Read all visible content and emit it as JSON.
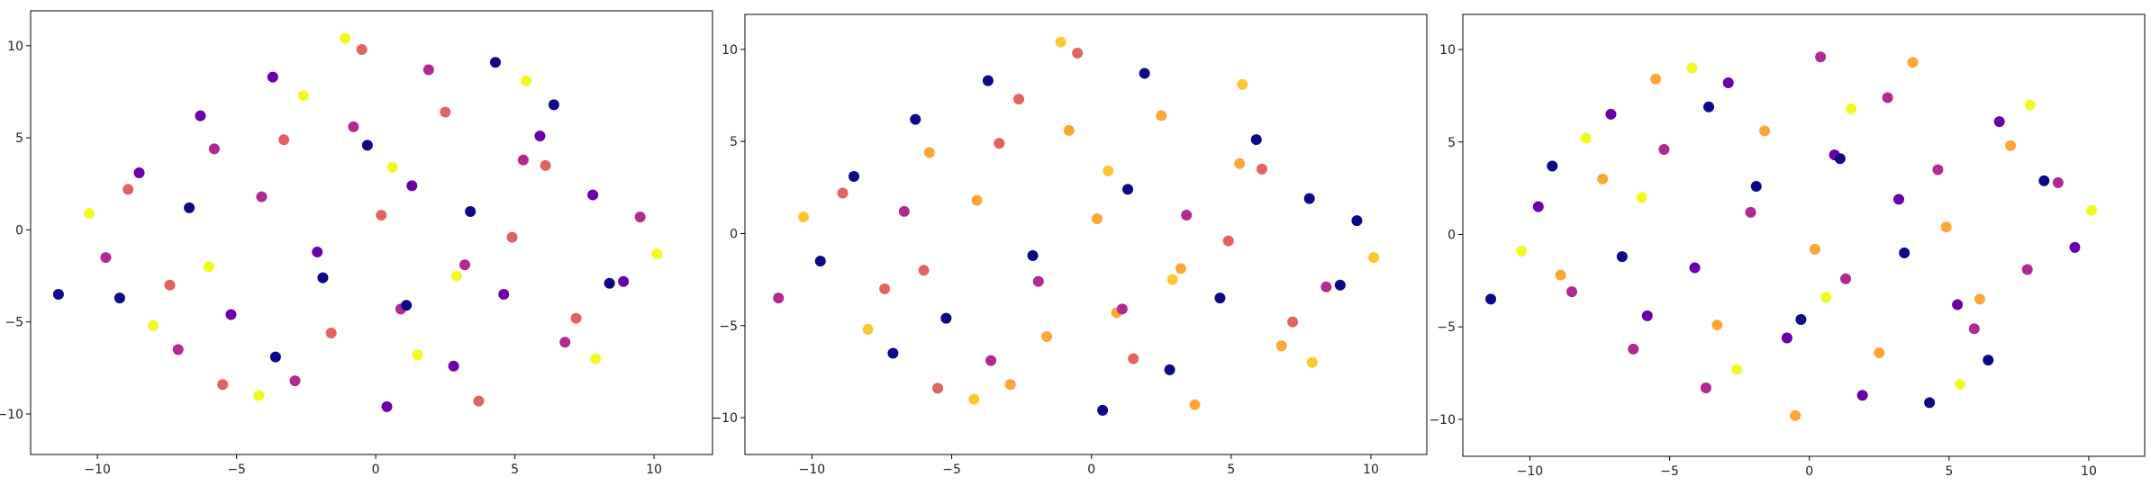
{
  "chart_data": [
    {
      "type": "scatter",
      "xlim": [
        -12.4,
        12.1
      ],
      "ylim": [
        -12.2,
        11.9
      ],
      "xticks": [
        {
          "value": -10,
          "label": "−10"
        },
        {
          "value": -5,
          "label": "−5"
        },
        0,
        5,
        10
      ],
      "yticks": [
        {
          "value": -10,
          "label": "−10"
        },
        {
          "value": -5,
          "label": "−5"
        },
        0,
        5,
        10
      ],
      "series": [
        {
          "color": "#6a00a8",
          "x": [
            -8.5,
            -5.2,
            -2.1,
            1.3,
            4.6,
            7.8,
            -6.3,
            2.8,
            5.9,
            -3.7,
            0.4,
            8.9
          ],
          "y": [
            3.1,
            -4.6,
            -1.2,
            2.4,
            -3.5,
            1.9,
            6.2,
            -7.4,
            5.1,
            8.3,
            -9.6,
            -2.8
          ]
        },
        {
          "color": "#b12a90",
          "x": [
            -9.7,
            -4.1,
            -0.8,
            3.2,
            6.8,
            9.5,
            -7.1,
            1.9,
            -2.9,
            5.3,
            -5.8,
            0.9
          ],
          "y": [
            -1.5,
            1.8,
            5.6,
            -1.9,
            -6.1,
            0.7,
            -6.5,
            8.7,
            -8.2,
            3.8,
            4.4,
            -4.3
          ]
        },
        {
          "color": "#e16462",
          "x": [
            -7.4,
            -3.3,
            0.2,
            2.5,
            4.9,
            7.2,
            -1.6,
            -5.5,
            3.7,
            -8.9,
            6.1,
            -0.5
          ],
          "y": [
            -3.0,
            4.9,
            0.8,
            6.4,
            -0.4,
            -4.8,
            -5.6,
            -8.4,
            -9.3,
            2.2,
            3.5,
            9.8
          ]
        },
        {
          "color": "#f0f921",
          "x": [
            -10.3,
            -6.0,
            -2.6,
            1.5,
            5.4,
            10.1,
            -4.2,
            0.6,
            7.9,
            -8.0,
            2.9,
            -1.1
          ],
          "y": [
            0.9,
            -2.0,
            7.3,
            -6.8,
            8.1,
            -1.3,
            -9.0,
            3.4,
            -7.0,
            -5.2,
            -2.5,
            10.4
          ]
        },
        {
          "color": "#0d0887",
          "x": [
            -6.7,
            -1.9,
            3.4,
            8.4,
            -3.6,
            1.1,
            -9.2,
            6.4,
            -0.3,
            4.3,
            -11.4
          ],
          "y": [
            1.2,
            -2.6,
            1.0,
            -2.9,
            -6.9,
            -4.1,
            -3.7,
            6.8,
            4.6,
            9.1,
            -3.5
          ]
        }
      ]
    },
    {
      "type": "scatter",
      "xlim": [
        -12.4,
        12.0
      ],
      "ylim": [
        -12.0,
        11.9
      ],
      "xticks": [
        {
          "value": -10,
          "label": "−10"
        },
        {
          "value": -5,
          "label": "−5"
        },
        0,
        5,
        10
      ],
      "yticks": [
        {
          "value": -10,
          "label": "−10"
        },
        {
          "value": -5,
          "label": "−5"
        },
        0,
        5,
        10
      ],
      "series": [
        {
          "color": "#0d0887",
          "x": [
            -8.5,
            -5.2,
            -2.1,
            1.3,
            4.6,
            7.8,
            -6.3,
            2.8,
            5.9,
            -3.7,
            0.4,
            8.9,
            -9.7,
            9.5,
            -7.1,
            1.9
          ],
          "y": [
            3.1,
            -4.6,
            -1.2,
            2.4,
            -3.5,
            1.9,
            6.2,
            -7.4,
            5.1,
            8.3,
            -9.6,
            -2.8,
            -1.5,
            0.7,
            -6.5,
            8.7
          ]
        },
        {
          "color": "#fca636",
          "x": [
            -4.1,
            -0.8,
            3.2,
            6.8,
            -2.9,
            5.3,
            -5.8,
            0.9,
            0.2,
            2.5,
            -1.6,
            3.7
          ],
          "y": [
            1.8,
            5.6,
            -1.9,
            -6.1,
            -8.2,
            3.8,
            4.4,
            -4.3,
            0.8,
            6.4,
            -5.6,
            -9.3
          ]
        },
        {
          "color": "#e16462",
          "x": [
            -7.4,
            -3.3,
            4.9,
            7.2,
            -5.5,
            -8.9,
            6.1,
            -0.5,
            -6.0,
            -2.6,
            1.5
          ],
          "y": [
            -3.0,
            4.9,
            -0.4,
            -4.8,
            -8.4,
            2.2,
            3.5,
            9.8,
            -2.0,
            7.3,
            -6.8
          ]
        },
        {
          "color": "#f9c932",
          "x": [
            5.4,
            10.1,
            -4.2,
            0.6,
            7.9,
            -8.0,
            2.9,
            -1.1,
            -10.3
          ],
          "y": [
            8.1,
            -1.3,
            -9.0,
            3.4,
            -7.0,
            -5.2,
            -2.5,
            10.4,
            0.9
          ]
        },
        {
          "color": "#b12a90",
          "x": [
            -6.7,
            -1.9,
            3.4,
            8.4,
            -3.6,
            1.1,
            -11.2
          ],
          "y": [
            1.2,
            -2.6,
            1.0,
            -2.9,
            -6.9,
            -4.1,
            -3.5
          ]
        }
      ]
    },
    {
      "type": "scatter",
      "xlim": [
        -12.4,
        12.0
      ],
      "ylim": [
        -12.0,
        11.9
      ],
      "xticks": [
        {
          "value": -10,
          "label": "−10"
        },
        {
          "value": -5,
          "label": "−5"
        },
        0,
        5,
        10
      ],
      "yticks": [
        {
          "value": -10,
          "label": "−10"
        },
        {
          "value": -5,
          "label": "−5"
        },
        0,
        5,
        10
      ],
      "series": [
        {
          "color": "#b12a90",
          "x": [
            -8.5,
            -5.2,
            -2.1,
            1.3,
            4.6,
            7.8,
            -6.3,
            2.8,
            5.9,
            -3.7,
            0.4,
            8.9
          ],
          "y": [
            -3.1,
            4.6,
            1.2,
            -2.4,
            3.5,
            -1.9,
            -6.2,
            7.4,
            -5.1,
            -8.3,
            9.6,
            2.8
          ]
        },
        {
          "color": "#6a00a8",
          "x": [
            -9.7,
            -4.1,
            -0.8,
            3.2,
            6.8,
            9.5,
            -7.1,
            1.9,
            -2.9,
            5.3,
            -5.8,
            0.9
          ],
          "y": [
            1.5,
            -1.8,
            -5.6,
            1.9,
            6.1,
            -0.7,
            6.5,
            -8.7,
            8.2,
            -3.8,
            -4.4,
            4.3
          ]
        },
        {
          "color": "#fca636",
          "x": [
            -7.4,
            -3.3,
            0.2,
            2.5,
            4.9,
            7.2,
            -1.6,
            -5.5,
            3.7,
            -8.9,
            6.1,
            -0.5
          ],
          "y": [
            3.0,
            -4.9,
            -0.8,
            -6.4,
            0.4,
            4.8,
            5.6,
            8.4,
            9.3,
            -2.2,
            -3.5,
            -9.8
          ]
        },
        {
          "color": "#f0f921",
          "x": [
            -10.3,
            -6.0,
            -2.6,
            1.5,
            5.4,
            10.1,
            -4.2,
            0.6,
            7.9,
            -8.0
          ],
          "y": [
            -0.9,
            2.0,
            -7.3,
            6.8,
            -8.1,
            1.3,
            9.0,
            -3.4,
            7.0,
            5.2
          ]
        },
        {
          "color": "#0d0887",
          "x": [
            -6.7,
            -1.9,
            3.4,
            8.4,
            -3.6,
            1.1,
            -9.2,
            6.4,
            -0.3,
            4.3,
            -11.4
          ],
          "y": [
            -1.2,
            2.6,
            -1.0,
            2.9,
            6.9,
            4.1,
            3.7,
            -6.8,
            -4.6,
            -9.1,
            -3.5
          ]
        }
      ]
    }
  ]
}
